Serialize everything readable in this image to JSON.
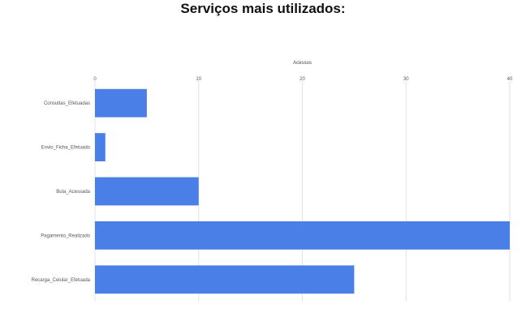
{
  "chart_data": {
    "type": "bar",
    "orientation": "horizontal",
    "title": "Serviços mais utilizados:",
    "xlabel": "Acessos",
    "ylabel": "",
    "categories": [
      "Consultas_Efetuadas",
      "Envio_Ficha_Efetuado",
      "Bula_Acessada",
      "Pagamento_Realizado",
      "Recarga_Celular_Efetuada"
    ],
    "series": [
      {
        "values": [
          5,
          1,
          10,
          40,
          25
        ]
      }
    ],
    "xlim": [
      0,
      40
    ],
    "xticks": [
      0,
      10,
      20,
      30,
      40
    ],
    "grid": true,
    "legend": "none",
    "colors": {
      "bar": "#4a7fe8",
      "grid": "#e3e3e3"
    }
  }
}
